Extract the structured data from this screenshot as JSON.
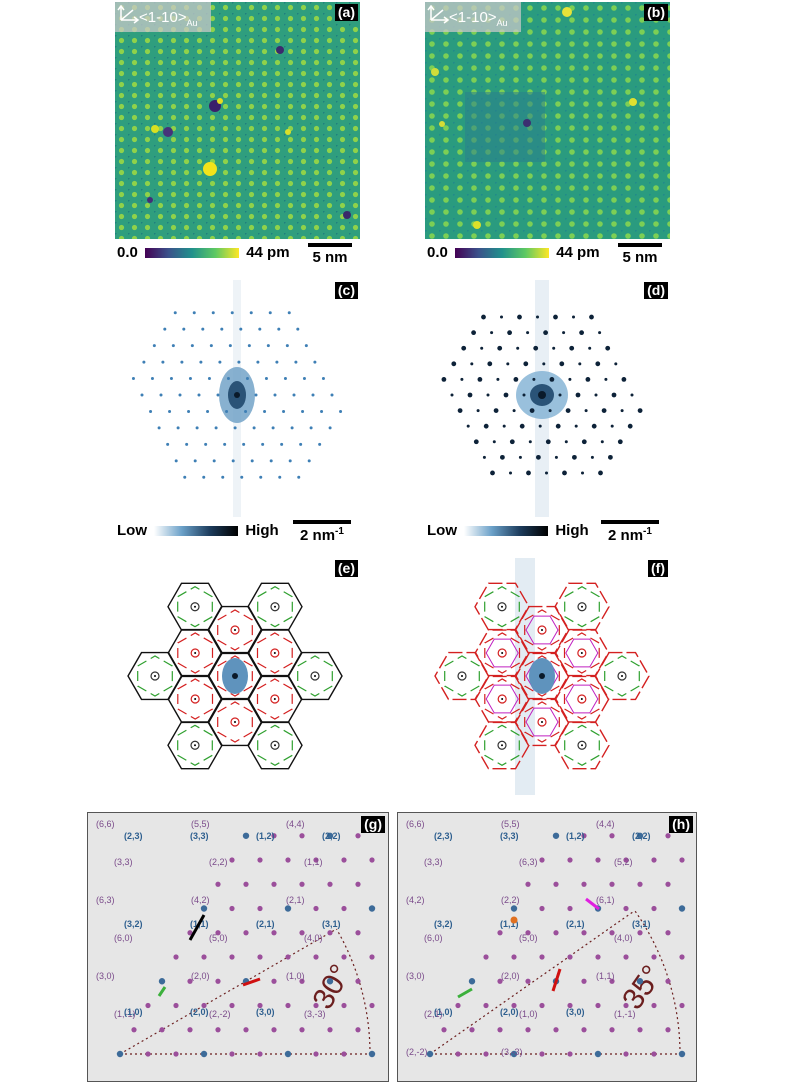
{
  "panels": {
    "a": "(a)",
    "b": "(b)",
    "c": "(c)",
    "d": "(d)",
    "e": "(e)",
    "f": "(f)",
    "g": "(g)",
    "h": "(h)"
  },
  "direction": {
    "text": "<1-10>",
    "sub": "Au"
  },
  "height_colorbar": {
    "min": "0.0",
    "max": "44 pm",
    "scale": "5 nm"
  },
  "fft_colorbar": {
    "low": "Low",
    "high": "High",
    "scale": "2 nm",
    "scale_exp": "-1"
  },
  "lattice_g": {
    "angle": "30°",
    "purple_labels": [
      "(6,6)",
      "(5,5)",
      "(4,4)",
      "(3,3)",
      "(2,2)",
      "(1,1)",
      "(6,3)",
      "(4,2)",
      "(2,1)",
      "(6,0)",
      "(5,0)",
      "(4,0)",
      "(3,0)",
      "(2,0)",
      "(1,0)",
      "(1,-1)",
      "(2,-2)",
      "(3,-3)"
    ],
    "blue_labels": [
      "(2,3)",
      "(3,3)",
      "(1,2)",
      "(2,2)",
      "(3,2)",
      "(1,1)",
      "(2,1)",
      "(3,1)",
      "(1,0)",
      "(2,0)",
      "(3,0)"
    ]
  },
  "lattice_h": {
    "angle": "35°",
    "purple_labels": [
      "(6,6)",
      "(5,5)",
      "(4,4)",
      "(3,3)",
      "(6,3)",
      "(5,2)",
      "(4,2)",
      "(2,2)",
      "(6,1)",
      "(6,0)",
      "(5,0)",
      "(4,0)",
      "(3,0)",
      "(2,0)",
      "(1,1)",
      "(2,1)",
      "(1,0)",
      "(1,-1)",
      "(2,-2)",
      "(3,-3)"
    ],
    "blue_labels": [
      "(2,3)",
      "(3,3)",
      "(1,2)",
      "(2,2)",
      "(3,2)",
      "(1,1)",
      "(2,1)",
      "(3,1)",
      "(1,0)",
      "(2,0)",
      "(3,0)"
    ]
  },
  "colors": {
    "purple_dot": "#9b4f9b",
    "blue_dot": "#3d6b99",
    "label_purple": "#7a4a8a",
    "label_blue": "#2e5f8f",
    "arc": "#6b1e1e",
    "hex_red": "#d42020",
    "hex_green": "#2fa02f",
    "hex_magenta": "#c020c0"
  }
}
